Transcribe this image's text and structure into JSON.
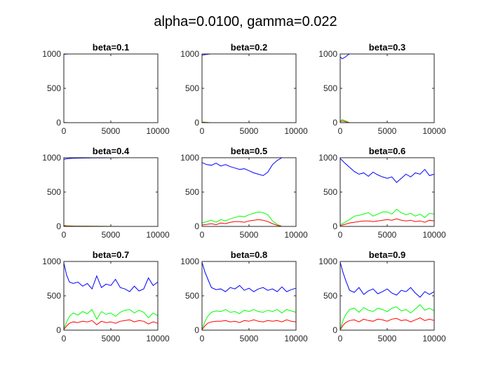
{
  "figure_title": "alpha=0.0100, gamma=0.022",
  "series_colors": [
    "#0000ff",
    "#00ff00",
    "#ff0000"
  ],
  "chart_data": [
    {
      "type": "line",
      "title": "beta=0.1",
      "xlim": [
        0,
        10000
      ],
      "ylim": [
        0,
        1000
      ],
      "xticks": [
        0,
        5000,
        10000
      ],
      "yticks": [
        0,
        500,
        1000
      ],
      "x": [
        0,
        500,
        1000,
        2000,
        3000,
        4000,
        5000,
        6000,
        7000,
        8000,
        9000,
        10000
      ],
      "series": [
        {
          "color": "#0000ff",
          "values": [
            995,
            1000,
            1000,
            1000,
            1000,
            1000,
            1000,
            1000,
            1000,
            1000,
            1000,
            1000
          ]
        },
        {
          "color": "#00ff00",
          "values": [
            3,
            0,
            0,
            0,
            0,
            0,
            0,
            0,
            0,
            0,
            0,
            0
          ]
        },
        {
          "color": "#ff0000",
          "values": [
            2,
            0,
            0,
            0,
            0,
            0,
            0,
            0,
            0,
            0,
            0,
            0
          ]
        }
      ]
    },
    {
      "type": "line",
      "title": "beta=0.2",
      "xlim": [
        0,
        10000
      ],
      "ylim": [
        0,
        1000
      ],
      "xticks": [
        0,
        5000,
        10000
      ],
      "yticks": [
        0,
        500,
        1000
      ],
      "x": [
        0,
        300,
        700,
        1000,
        2000,
        3000,
        4000,
        5000,
        6000,
        7000,
        8000,
        9000,
        10000
      ],
      "series": [
        {
          "color": "#0000ff",
          "values": [
            985,
            990,
            998,
            1000,
            1000,
            1000,
            1000,
            1000,
            1000,
            1000,
            1000,
            1000,
            1000
          ]
        },
        {
          "color": "#00ff00",
          "values": [
            10,
            8,
            2,
            0,
            0,
            0,
            0,
            0,
            0,
            0,
            0,
            0,
            0
          ]
        },
        {
          "color": "#ff0000",
          "values": [
            5,
            4,
            1,
            0,
            0,
            0,
            0,
            0,
            0,
            0,
            0,
            0,
            0
          ]
        }
      ]
    },
    {
      "type": "line",
      "title": "beta=0.3",
      "xlim": [
        0,
        10000
      ],
      "ylim": [
        0,
        1000
      ],
      "xticks": [
        0,
        5000,
        10000
      ],
      "yticks": [
        0,
        500,
        1000
      ],
      "x": [
        0,
        200,
        400,
        600,
        800,
        1000,
        1500,
        2000,
        3000,
        4000,
        5000,
        6000,
        7000,
        8000,
        9000,
        10000
      ],
      "series": [
        {
          "color": "#0000ff",
          "values": [
            960,
            930,
            945,
            960,
            985,
            1000,
            1000,
            1000,
            1000,
            1000,
            1000,
            1000,
            1000,
            1000,
            1000,
            1000
          ]
        },
        {
          "color": "#00ff00",
          "values": [
            20,
            45,
            35,
            25,
            10,
            0,
            0,
            0,
            0,
            0,
            0,
            0,
            0,
            0,
            0,
            0
          ]
        },
        {
          "color": "#ff0000",
          "values": [
            15,
            25,
            20,
            12,
            5,
            0,
            0,
            0,
            0,
            0,
            0,
            0,
            0,
            0,
            0,
            0
          ]
        }
      ]
    },
    {
      "type": "line",
      "title": "beta=0.4",
      "xlim": [
        0,
        10000
      ],
      "ylim": [
        0,
        1000
      ],
      "xticks": [
        0,
        5000,
        10000
      ],
      "yticks": [
        0,
        500,
        1000
      ],
      "x": [
        0,
        300,
        700,
        1000,
        2000,
        3000,
        4000,
        5000,
        6000,
        7000,
        8000,
        9000,
        10000
      ],
      "series": [
        {
          "color": "#0000ff",
          "values": [
            975,
            985,
            990,
            993,
            995,
            997,
            998,
            999,
            1000,
            1000,
            1000,
            1000,
            1000
          ]
        },
        {
          "color": "#00ff00",
          "values": [
            15,
            10,
            8,
            6,
            5,
            3,
            2,
            1,
            0,
            0,
            0,
            0,
            0
          ]
        },
        {
          "color": "#ff0000",
          "values": [
            10,
            6,
            5,
            4,
            3,
            2,
            1,
            0,
            0,
            0,
            0,
            0,
            0
          ]
        }
      ]
    },
    {
      "type": "line",
      "title": "beta=0.5",
      "xlim": [
        0,
        10000
      ],
      "ylim": [
        0,
        1000
      ],
      "xticks": [
        0,
        5000,
        10000
      ],
      "yticks": [
        0,
        500,
        1000
      ],
      "x": [
        0,
        500,
        1000,
        1500,
        2000,
        2500,
        3000,
        3500,
        4000,
        4500,
        5000,
        5500,
        6000,
        6500,
        7000,
        7500,
        8000,
        8500,
        9000,
        9500,
        10000
      ],
      "series": [
        {
          "color": "#0000ff",
          "values": [
            930,
            900,
            890,
            920,
            880,
            900,
            870,
            850,
            830,
            840,
            810,
            780,
            760,
            740,
            790,
            900,
            960,
            1000,
            1000,
            1000,
            1000
          ]
        },
        {
          "color": "#00ff00",
          "values": [
            50,
            70,
            90,
            60,
            100,
            80,
            110,
            130,
            150,
            140,
            170,
            190,
            210,
            200,
            170,
            80,
            30,
            0,
            0,
            0,
            0
          ]
        },
        {
          "color": "#ff0000",
          "values": [
            20,
            30,
            40,
            25,
            50,
            40,
            60,
            70,
            70,
            60,
            80,
            90,
            100,
            90,
            70,
            40,
            15,
            0,
            0,
            0,
            0
          ]
        }
      ]
    },
    {
      "type": "line",
      "title": "beta=0.6",
      "xlim": [
        0,
        10000
      ],
      "ylim": [
        0,
        1000
      ],
      "xticks": [
        0,
        5000,
        10000
      ],
      "yticks": [
        0,
        500,
        1000
      ],
      "x": [
        0,
        500,
        1000,
        1500,
        2000,
        2500,
        3000,
        3500,
        4000,
        4500,
        5000,
        5500,
        6000,
        6500,
        7000,
        7500,
        8000,
        8500,
        9000,
        9500,
        10000
      ],
      "series": [
        {
          "color": "#0000ff",
          "values": [
            990,
            920,
            860,
            800,
            760,
            780,
            730,
            790,
            750,
            720,
            700,
            720,
            640,
            700,
            760,
            720,
            780,
            760,
            830,
            740,
            760
          ]
        },
        {
          "color": "#00ff00",
          "values": [
            20,
            60,
            100,
            150,
            160,
            180,
            200,
            150,
            180,
            210,
            210,
            180,
            250,
            200,
            170,
            190,
            150,
            180,
            130,
            190,
            180
          ]
        },
        {
          "color": "#ff0000",
          "values": [
            10,
            30,
            50,
            60,
            70,
            80,
            80,
            70,
            80,
            90,
            100,
            90,
            110,
            90,
            80,
            90,
            70,
            80,
            60,
            90,
            80
          ]
        }
      ]
    },
    {
      "type": "line",
      "title": "beta=0.7",
      "xlim": [
        0,
        10000
      ],
      "ylim": [
        0,
        1000
      ],
      "xticks": [
        0,
        5000,
        10000
      ],
      "yticks": [
        0,
        500,
        1000
      ],
      "x": [
        0,
        300,
        600,
        1000,
        1500,
        2000,
        2500,
        3000,
        3500,
        4000,
        4500,
        5000,
        5500,
        6000,
        6500,
        7000,
        7500,
        8000,
        8500,
        9000,
        9500,
        10000
      ],
      "series": [
        {
          "color": "#0000ff",
          "values": [
            980,
            800,
            700,
            680,
            700,
            640,
            680,
            600,
            790,
            620,
            670,
            650,
            740,
            620,
            600,
            560,
            640,
            570,
            600,
            760,
            650,
            700
          ]
        },
        {
          "color": "#00ff00",
          "values": [
            20,
            120,
            200,
            250,
            220,
            270,
            240,
            300,
            160,
            270,
            230,
            250,
            200,
            260,
            290,
            300,
            250,
            290,
            260,
            180,
            250,
            210
          ]
        },
        {
          "color": "#ff0000",
          "values": [
            10,
            60,
            100,
            120,
            110,
            130,
            120,
            140,
            80,
            130,
            110,
            120,
            100,
            130,
            140,
            150,
            120,
            140,
            130,
            90,
            120,
            100
          ]
        }
      ]
    },
    {
      "type": "line",
      "title": "beta=0.8",
      "xlim": [
        0,
        10000
      ],
      "ylim": [
        0,
        1000
      ],
      "xticks": [
        0,
        5000,
        10000
      ],
      "yticks": [
        0,
        500,
        1000
      ],
      "x": [
        0,
        300,
        600,
        1000,
        1500,
        2000,
        2500,
        3000,
        3500,
        4000,
        4500,
        5000,
        5500,
        6000,
        6500,
        7000,
        7500,
        8000,
        8500,
        9000,
        9500,
        10000
      ],
      "series": [
        {
          "color": "#0000ff",
          "values": [
            990,
            850,
            750,
            620,
            590,
            600,
            560,
            620,
            600,
            650,
            580,
            610,
            560,
            600,
            620,
            580,
            600,
            560,
            630,
            560,
            590,
            610
          ]
        },
        {
          "color": "#00ff00",
          "values": [
            10,
            120,
            200,
            260,
            280,
            270,
            300,
            260,
            270,
            240,
            290,
            270,
            300,
            270,
            260,
            290,
            270,
            300,
            250,
            300,
            280,
            260
          ]
        },
        {
          "color": "#ff0000",
          "values": [
            5,
            60,
            100,
            120,
            130,
            130,
            140,
            120,
            130,
            110,
            140,
            130,
            150,
            130,
            120,
            140,
            130,
            140,
            120,
            150,
            130,
            120
          ]
        }
      ]
    },
    {
      "type": "line",
      "title": "beta=0.9",
      "xlim": [
        0,
        10000
      ],
      "ylim": [
        0,
        1000
      ],
      "xticks": [
        0,
        5000,
        10000
      ],
      "yticks": [
        0,
        500,
        1000
      ],
      "x": [
        0,
        300,
        600,
        1000,
        1500,
        2000,
        2500,
        3000,
        3500,
        4000,
        4500,
        5000,
        5500,
        6000,
        6500,
        7000,
        7500,
        8000,
        8500,
        9000,
        9500,
        10000
      ],
      "series": [
        {
          "color": "#0000ff",
          "values": [
            990,
            840,
            720,
            580,
            550,
            620,
            520,
            570,
            600,
            530,
            560,
            600,
            540,
            510,
            580,
            560,
            620,
            540,
            480,
            560,
            520,
            560
          ]
        },
        {
          "color": "#00ff00",
          "values": [
            10,
            140,
            230,
            300,
            320,
            260,
            330,
            290,
            270,
            320,
            300,
            270,
            320,
            340,
            280,
            300,
            250,
            310,
            370,
            290,
            320,
            280
          ]
        },
        {
          "color": "#ff0000",
          "values": [
            5,
            70,
            110,
            140,
            150,
            120,
            160,
            140,
            130,
            160,
            150,
            130,
            160,
            170,
            140,
            150,
            120,
            150,
            180,
            140,
            160,
            140
          ]
        }
      ]
    }
  ]
}
